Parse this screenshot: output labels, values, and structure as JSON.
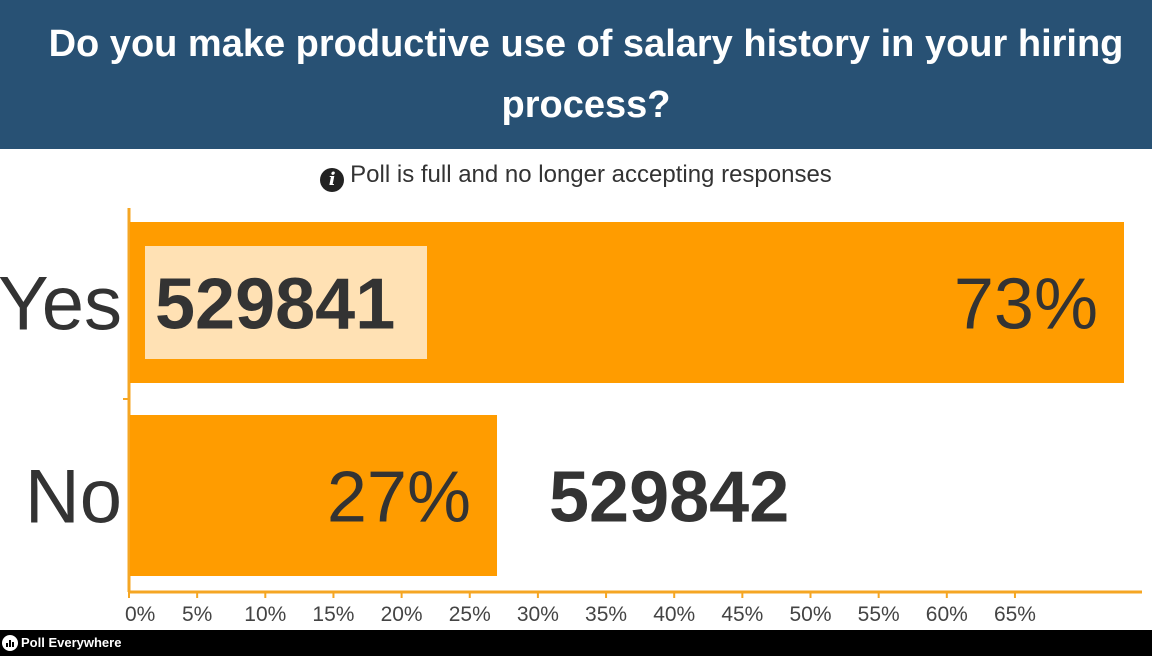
{
  "header": {
    "title": "Do you make productive use of salary history in your hiring process?"
  },
  "status": {
    "icon": "info-icon",
    "text": "Poll is full and no longer accepting responses"
  },
  "footer": {
    "brand": "Poll Everywhere",
    "icon": "poll-everywhere-logo-icon"
  },
  "chart_data": {
    "type": "bar",
    "orientation": "horizontal",
    "categories": [
      "Yes",
      "No"
    ],
    "series": [
      {
        "values": [
          73,
          27
        ]
      }
    ],
    "percent_labels": [
      "73%",
      "27%"
    ],
    "count_labels": [
      "529841",
      "529842"
    ],
    "x_ticks": [
      "0%",
      "5%",
      "10%",
      "15%",
      "20%",
      "25%",
      "30%",
      "35%",
      "40%",
      "45%",
      "50%",
      "55%",
      "60%",
      "65%"
    ],
    "xlim": [
      0,
      73
    ],
    "xlabel": "",
    "ylabel": "",
    "grid": false,
    "legend": "none",
    "colors": {
      "bar": "#ff9c00",
      "count_highlight": "#ffe1b4",
      "axis": "#f5a623",
      "header": "#285174"
    }
  }
}
